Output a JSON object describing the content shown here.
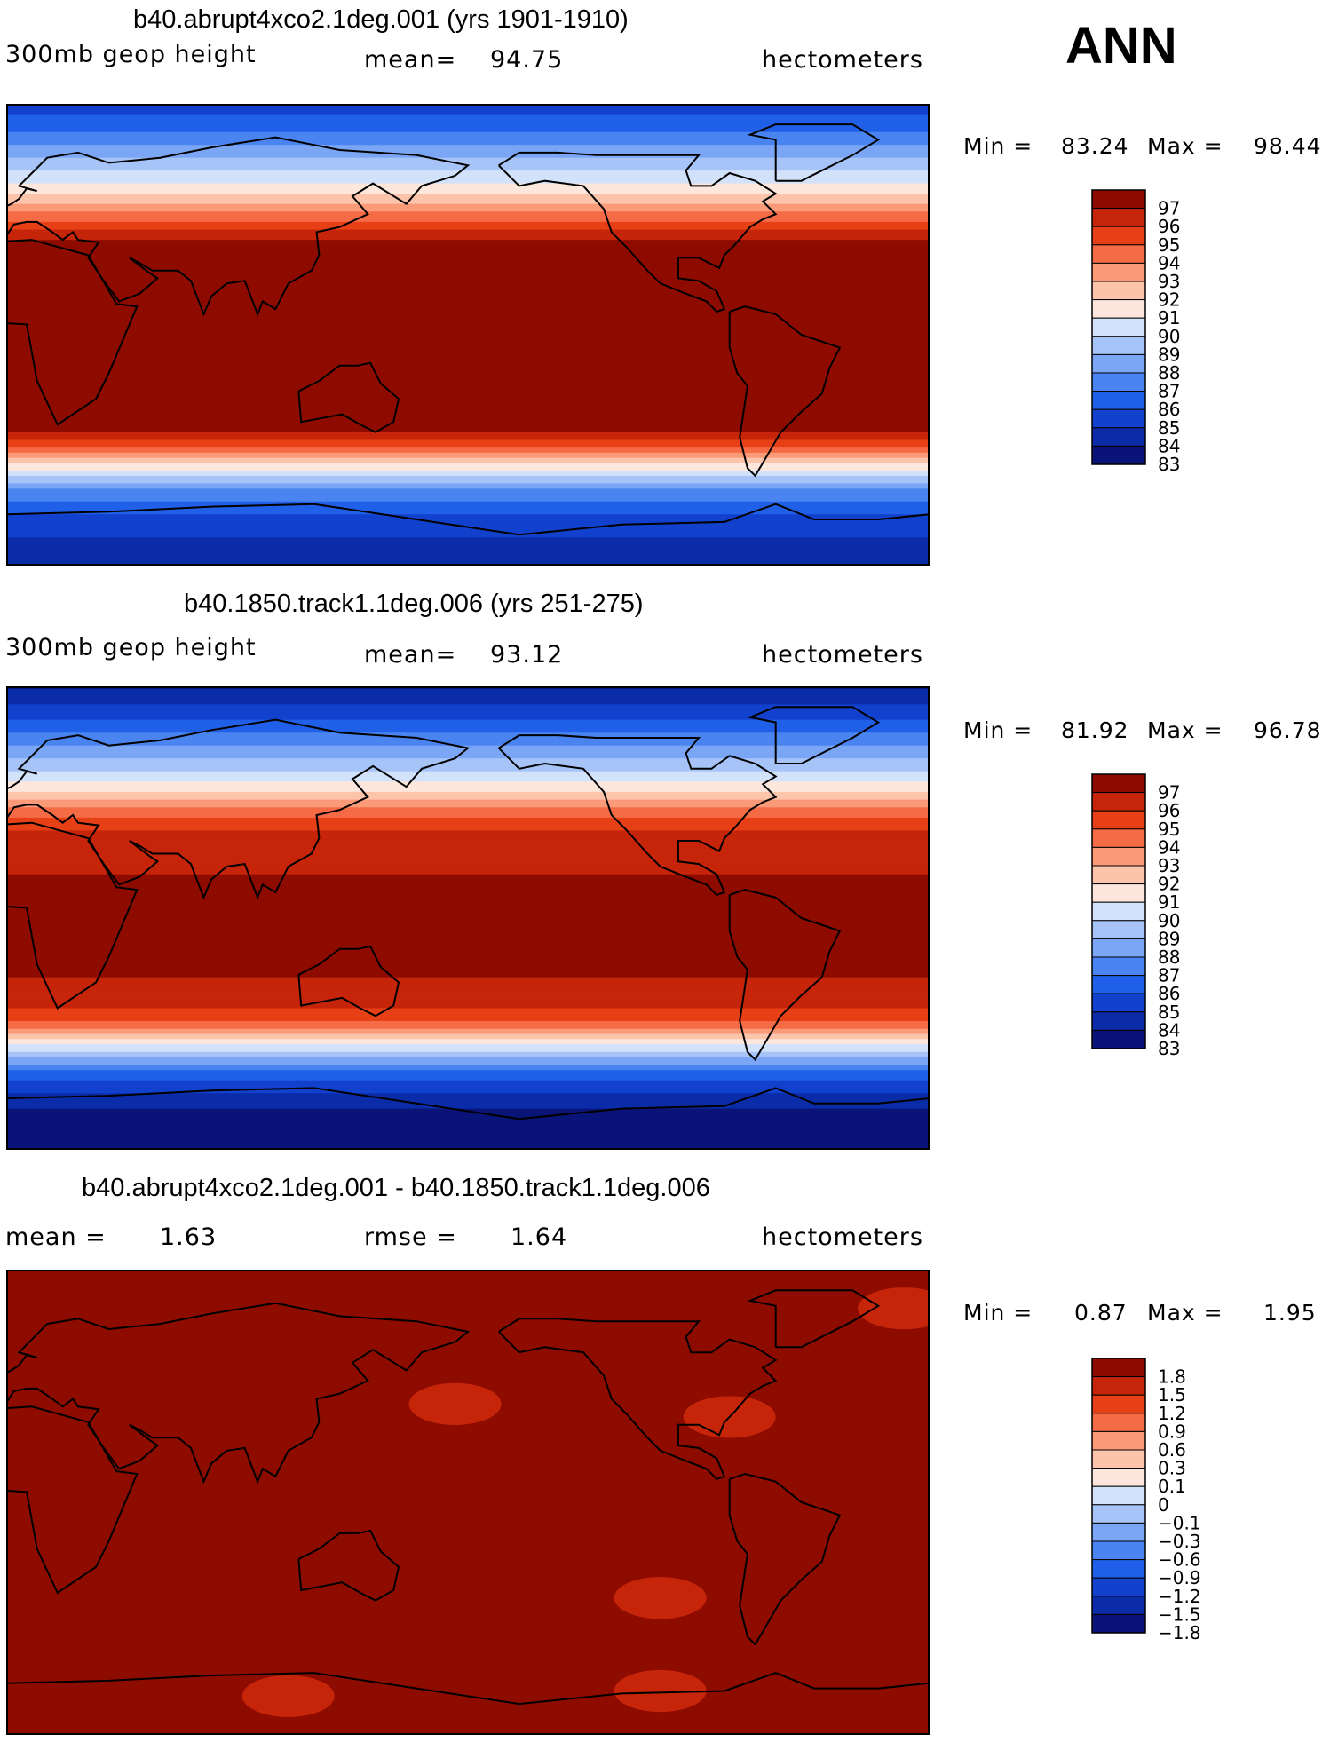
{
  "season": "ANN",
  "colors": {
    "abs_scale": [
      "#0a1478",
      "#0b2ca9",
      "#1141cd",
      "#2060e8",
      "#4a84f0",
      "#7aa6f5",
      "#a6c4f8",
      "#d2e2fb",
      "#fde7dc",
      "#fcc4aa",
      "#fa9a78",
      "#f56b45",
      "#e84016",
      "#c6250a",
      "#8e0b00"
    ],
    "diff_scale": [
      "#0a1478",
      "#0b2ca9",
      "#1141cd",
      "#2060e8",
      "#4a84f0",
      "#7aa6f5",
      "#a6c4f8",
      "#d2e2fb",
      "#fde7dc",
      "#fcc4aa",
      "#fa9a78",
      "#f56b45",
      "#e84016",
      "#c6250a",
      "#8e0b00"
    ]
  },
  "chart_data": [
    {
      "type": "heatmap",
      "title": "b40.abrupt4xco2.1deg.001 (yrs 1901-1910)",
      "variable": "300mb geop height",
      "stat_label": "mean=",
      "stat_value": "94.75",
      "units": "hectometers",
      "min_label": "Min =",
      "min": "83.24",
      "max_label": "Max =",
      "max": "98.44",
      "levels": [
        "97",
        "96",
        "95",
        "94",
        "93",
        "92",
        "91",
        "90",
        "89",
        "88",
        "87",
        "86",
        "85",
        "84",
        "83"
      ],
      "lat_profile": [
        {
          "lat": 90,
          "value": 84.5
        },
        {
          "lat": 80,
          "value": 86.0
        },
        {
          "lat": 70,
          "value": 88.0
        },
        {
          "lat": 60,
          "value": 90.0
        },
        {
          "lat": 50,
          "value": 92.5
        },
        {
          "lat": 45,
          "value": 94.0
        },
        {
          "lat": 40,
          "value": 95.5
        },
        {
          "lat": 32,
          "value": 97.2
        },
        {
          "lat": 0,
          "value": 98.2
        },
        {
          "lat": -30,
          "value": 97.5
        },
        {
          "lat": -38,
          "value": 96.0
        },
        {
          "lat": -45,
          "value": 93.5
        },
        {
          "lat": -50,
          "value": 91.0
        },
        {
          "lat": -55,
          "value": 89.0
        },
        {
          "lat": -60,
          "value": 87.0
        },
        {
          "lat": -70,
          "value": 85.0
        },
        {
          "lat": -80,
          "value": 83.8
        },
        {
          "lat": -90,
          "value": 83.3
        }
      ]
    },
    {
      "type": "heatmap",
      "title": "b40.1850.track1.1deg.006 (yrs 251-275)",
      "variable": "300mb geop height",
      "stat_label": "mean=",
      "stat_value": "93.12",
      "units": "hectometers",
      "min_label": "Min =",
      "min": "81.92",
      "max_label": "Max =",
      "max": "96.78",
      "levels": [
        "97",
        "96",
        "95",
        "94",
        "93",
        "92",
        "91",
        "90",
        "89",
        "88",
        "87",
        "86",
        "85",
        "84",
        "83"
      ],
      "lat_profile": [
        {
          "lat": 90,
          "value": 83.0
        },
        {
          "lat": 80,
          "value": 84.5
        },
        {
          "lat": 70,
          "value": 86.5
        },
        {
          "lat": 60,
          "value": 88.5
        },
        {
          "lat": 50,
          "value": 91.0
        },
        {
          "lat": 45,
          "value": 92.5
        },
        {
          "lat": 40,
          "value": 94.0
        },
        {
          "lat": 32,
          "value": 95.5
        },
        {
          "lat": 0,
          "value": 96.6
        },
        {
          "lat": -30,
          "value": 95.8
        },
        {
          "lat": -38,
          "value": 94.5
        },
        {
          "lat": -45,
          "value": 92.0
        },
        {
          "lat": -50,
          "value": 89.5
        },
        {
          "lat": -55,
          "value": 87.5
        },
        {
          "lat": -60,
          "value": 85.5
        },
        {
          "lat": -70,
          "value": 83.5
        },
        {
          "lat": -80,
          "value": 82.2
        },
        {
          "lat": -90,
          "value": 82.0
        }
      ]
    },
    {
      "type": "heatmap",
      "title": "b40.abrupt4xco2.1deg.001 - b40.1850.track1.1deg.006",
      "stat_label": "mean =",
      "stat_value": "1.63",
      "stat2_label": "rmse =",
      "stat2_value": "1.64",
      "units": "hectometers",
      "min_label": "Min =",
      "min": "0.87",
      "max_label": "Max =",
      "max": "1.95",
      "levels": [
        "1.8",
        "1.5",
        "1.2",
        "0.9",
        "0.6",
        "0.3",
        "0.1",
        "0",
        "−0.1",
        "−0.3",
        "−0.6",
        "−0.9",
        "−1.2",
        "−1.5",
        "−1.8"
      ],
      "background_value": 1.6,
      "patches": [
        {
          "lon": 100,
          "lat": 50,
          "value": 1.85
        },
        {
          "lon": 290,
          "lat": 60,
          "value": 1.85
        },
        {
          "lon": 148,
          "lat": -43,
          "value": 1.85
        },
        {
          "lon": 105,
          "lat": -47,
          "value": 1.85
        },
        {
          "lon": 320,
          "lat": -48,
          "value": 1.85
        },
        {
          "lon": 240,
          "lat": -17,
          "value": 1.85
        },
        {
          "lon": 175,
          "lat": 38,
          "value": 1.4
        },
        {
          "lon": 282,
          "lat": 33,
          "value": 1.3
        },
        {
          "lon": 255,
          "lat": -37,
          "value": 1.4
        },
        {
          "lon": 255,
          "lat": -73,
          "value": 1.3
        },
        {
          "lon": 110,
          "lat": -75,
          "value": 1.4
        },
        {
          "lon": 350,
          "lat": 75,
          "value": 1.4
        }
      ]
    }
  ]
}
